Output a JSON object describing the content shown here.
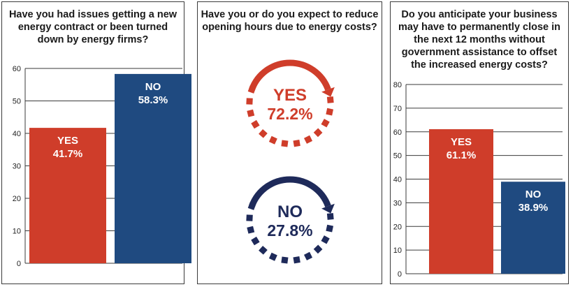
{
  "colors": {
    "red": "#cf3d2a",
    "blue": "#1f4a80",
    "navy": "#1e2a5a",
    "grid": "#3a3a3a"
  },
  "panel1": {
    "question": "Have you had issues getting a new energy contract or been turned down by energy firms?"
  },
  "panel2": {
    "question": "Have you or do you expect to reduce opening hours due to energy costs?"
  },
  "panel3": {
    "question": "Do you anticipate your business may have to permanently close in the next 12 months without government assistance to offset the increased energy costs?"
  },
  "chart_data": [
    {
      "type": "bar",
      "title": "Have you had issues getting a new energy contract or been turned down by energy firms?",
      "categories": [
        "YES",
        "NO"
      ],
      "values": [
        41.7,
        58.3
      ],
      "value_labels": [
        "41.7%",
        "58.3%"
      ],
      "colors": [
        "#cf3d2a",
        "#1f4a80"
      ],
      "ylim": [
        0,
        60
      ],
      "yticks": [
        0,
        10,
        20,
        30,
        40,
        50,
        60
      ],
      "grid": true
    },
    {
      "type": "pie",
      "title": "Have you or do you expect to reduce opening hours due to energy costs?",
      "categories": [
        "YES",
        "NO"
      ],
      "values": [
        72.2,
        27.8
      ],
      "value_labels": [
        "72.2%",
        "27.8%"
      ],
      "colors": [
        "#cf3d2a",
        "#1e2a5a"
      ]
    },
    {
      "type": "bar",
      "title": "Do you anticipate your business may have to permanently close in the next 12 months without government assistance to offset the increased energy costs?",
      "categories": [
        "YES",
        "NO"
      ],
      "values": [
        61.1,
        38.9
      ],
      "value_labels": [
        "61.1%",
        "38.9%"
      ],
      "colors": [
        "#cf3d2a",
        "#1f4a80"
      ],
      "ylim": [
        0,
        80
      ],
      "yticks": [
        0,
        10,
        20,
        30,
        40,
        50,
        60,
        70,
        80
      ],
      "grid": true
    }
  ]
}
